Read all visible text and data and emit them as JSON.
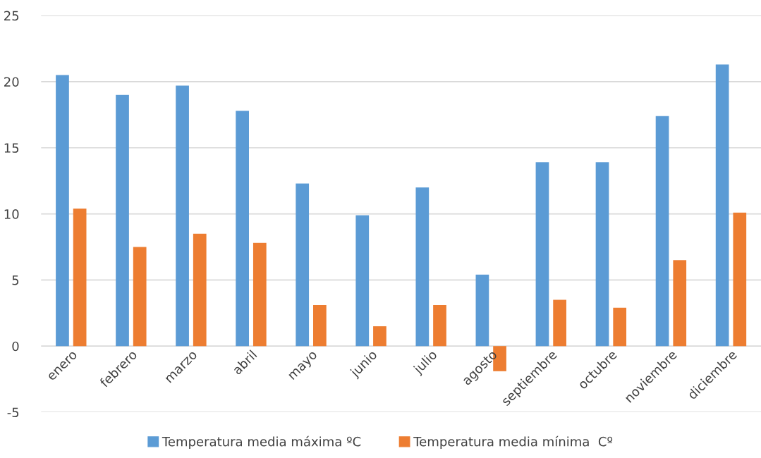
{
  "chart_data": {
    "type": "bar",
    "categories": [
      "enero",
      "febrero",
      "marzo",
      "abril",
      "mayo",
      "junio",
      "julio",
      "agosto",
      "septiembre",
      "octubre",
      "noviembre",
      "diciembre"
    ],
    "series": [
      {
        "name": "Temperatura media máxima ºC",
        "color": "#5b9bd5",
        "values": [
          20.5,
          19.0,
          19.7,
          17.8,
          12.3,
          9.9,
          12.0,
          5.4,
          13.9,
          13.9,
          17.4,
          21.3
        ]
      },
      {
        "name": "Temperatura media mínima  Cº",
        "color": "#ed7d31",
        "values": [
          10.4,
          7.5,
          8.5,
          7.8,
          3.1,
          1.5,
          3.1,
          -1.9,
          3.5,
          2.9,
          6.5,
          10.1
        ]
      }
    ],
    "ylim": [
      -5,
      25
    ],
    "yticks": [
      {
        "value": -5,
        "label": "-5"
      },
      0,
      5,
      10,
      15,
      20,
      25
    ],
    "grid": "y",
    "legend": "bottom"
  }
}
